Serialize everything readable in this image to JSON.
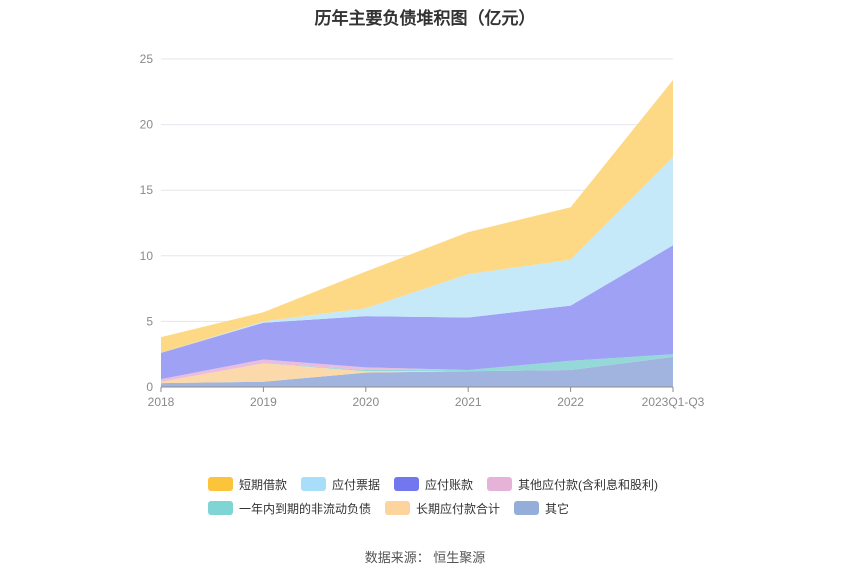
{
  "title": "历年主要负债堆积图（亿元）",
  "source": "数据来源：  恒生聚源",
  "chart_data": {
    "type": "area",
    "stacked": true,
    "categories": [
      "2018",
      "2019",
      "2020",
      "2021",
      "2022",
      "2023Q1-Q3"
    ],
    "ylim": [
      0,
      25
    ],
    "yticks": [
      "0",
      "5",
      "10",
      "15",
      "20",
      "25"
    ],
    "grid": true,
    "legend_position": "bottom",
    "series": [
      {
        "name": "其它",
        "color": "#9bb0dd",
        "values": [
          0.3,
          0.4,
          1.1,
          1.2,
          1.3,
          2.3
        ]
      },
      {
        "name": "长期应付款合计",
        "color": "#fbd7a5",
        "values": [
          0.1,
          1.4,
          0.1,
          0.0,
          0.0,
          0.0
        ]
      },
      {
        "name": "一年内到期的非流动负债",
        "color": "#8fd6d6",
        "values": [
          0.0,
          0.0,
          0.1,
          0.1,
          0.7,
          0.2
        ]
      },
      {
        "name": "其他应付款(含利息和股利)",
        "color": "#e8b9dc",
        "values": [
          0.2,
          0.3,
          0.2,
          0.0,
          0.0,
          0.0
        ]
      },
      {
        "name": "应付账款",
        "color": "#9a9cf3",
        "values": [
          2.0,
          2.8,
          3.9,
          4.0,
          4.2,
          8.3
        ]
      },
      {
        "name": "应付票据",
        "color": "#c3e8fa",
        "values": [
          0.0,
          0.1,
          0.6,
          3.3,
          3.5,
          6.7
        ]
      },
      {
        "name": "短期借款",
        "color": "#fdd780",
        "values": [
          1.2,
          0.7,
          2.8,
          3.2,
          4.0,
          5.9
        ]
      }
    ]
  },
  "legend": {
    "row1": [
      {
        "label": "短期借款",
        "color": "#fcc43a"
      },
      {
        "label": "应付票据",
        "color": "#a9defa"
      },
      {
        "label": "应付账款",
        "color": "#7377ef"
      },
      {
        "label": "其他应付款(含利息和股利)",
        "color": "#e6b3d8"
      }
    ],
    "row2": [
      {
        "label": "一年内到期的非流动负债",
        "color": "#7fd5d4"
      },
      {
        "label": "长期应付款合计",
        "color": "#fdd49e"
      },
      {
        "label": "其它",
        "color": "#94aed9"
      }
    ]
  }
}
